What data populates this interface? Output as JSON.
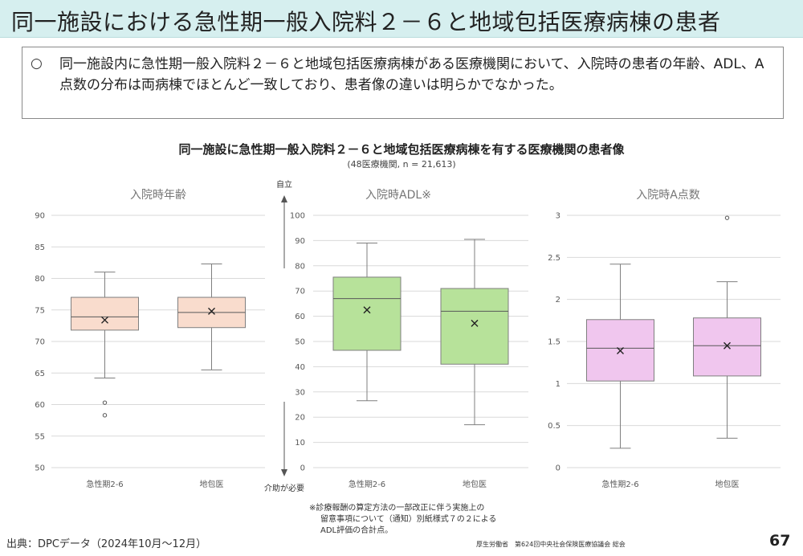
{
  "header": {
    "title": "同一施設における急性期一般入院料２－６と地域包括医療病棟の患者"
  },
  "summary": {
    "bullet": "○",
    "text": "同一施設内に急性期一般入院料２－６と地域包括医療病棟がある医療機関において、入院時の患者の年齢、ADL、A点数の分布は両病棟でほとんど一致しており、患者像の違いは明らかでなかった。"
  },
  "figure": {
    "title": "同一施設に急性期一般入院料２－６と地域包括医療病棟を有する医療機関の患者像",
    "subtitle": "(48医療機関, n = 21,613)"
  },
  "chart_data": [
    {
      "type": "boxplot",
      "title": "入院時年齢",
      "categories": [
        "急性期2-6",
        "地包医"
      ],
      "ylim": [
        50,
        90
      ],
      "yticks": [
        "50",
        "55",
        "60",
        "65",
        "70",
        "75",
        "80",
        "85",
        "90"
      ],
      "grid": true,
      "color": "#f9dccd",
      "series": [
        {
          "min": 64.2,
          "q1": 71.8,
          "median": 73.9,
          "q3": 77.0,
          "max": 81.0,
          "mean": 73.4,
          "outliers": [
            60.3,
            58.3
          ]
        },
        {
          "min": 65.5,
          "q1": 72.2,
          "median": 74.6,
          "q3": 77.0,
          "max": 82.3,
          "mean": 74.8,
          "outliers": []
        }
      ]
    },
    {
      "type": "boxplot",
      "title": "入院時ADL※",
      "categories": [
        "急性期2-6",
        "地包医"
      ],
      "ylim": [
        0,
        100
      ],
      "yticks": [
        "0",
        "10",
        "20",
        "30",
        "40",
        "50",
        "60",
        "70",
        "80",
        "90",
        "100"
      ],
      "grid": true,
      "color": "#b7e29a",
      "top_annotation": "自立",
      "bottom_annotation": "介助が必要",
      "series": [
        {
          "min": 26.5,
          "q1": 46.5,
          "median": 67.0,
          "q3": 75.5,
          "max": 89.0,
          "mean": 62.5,
          "outliers": []
        },
        {
          "min": 17.0,
          "q1": 41.0,
          "median": 62.0,
          "q3": 71.0,
          "max": 90.5,
          "mean": 57.2,
          "outliers": []
        }
      ]
    },
    {
      "type": "boxplot",
      "title": "入院時A点数",
      "categories": [
        "急性期2-6",
        "地包医"
      ],
      "ylim": [
        0,
        3
      ],
      "yticks": [
        "0",
        "0.5",
        "1",
        "1.5",
        "2",
        "2.5",
        "3"
      ],
      "grid": true,
      "color": "#f0c6ee",
      "series": [
        {
          "min": 0.23,
          "q1": 1.03,
          "median": 1.42,
          "q3": 1.76,
          "max": 2.42,
          "mean": 1.39,
          "outliers": []
        },
        {
          "min": 0.35,
          "q1": 1.09,
          "median": 1.45,
          "q3": 1.78,
          "max": 2.21,
          "mean": 1.45,
          "outliers": [
            2.97
          ]
        }
      ]
    }
  ],
  "note": {
    "line1": "※診療報酬の算定方法の一部改正に伴う実施上の",
    "line2": "留意事項について（通知）別紙様式７の２による",
    "line3": "ADL評価の合計点。"
  },
  "footer": {
    "source": "出典：DPCデータ（2024年10月～12月）",
    "org": "厚生労働省　第624回中央社会保険医療協議会 総会",
    "page": "67"
  },
  "colors": {
    "header_bg": "#d6efef",
    "box_stroke": "#7f7f7f",
    "median_line": "#595959",
    "grid": "#d9d9d9"
  }
}
